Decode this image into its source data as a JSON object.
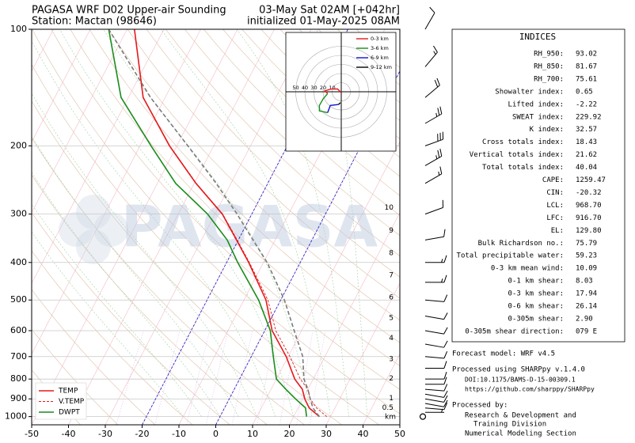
{
  "chart_data": {
    "type": "skewt",
    "title": "PAGASA WRF D02 Upper-air Sounding",
    "subtitle": "Station: Mactan (98646)",
    "title_right": "03-May Sat 02AM [+042hr]",
    "subtitle_right": "initialized 01-May-2025 08AM",
    "watermark": "PAGASA",
    "pressure": [
      1000,
      950,
      900,
      850,
      800,
      700,
      600,
      500,
      400,
      350,
      300,
      250,
      200,
      150,
      100
    ],
    "series": [
      {
        "name": "TEMP",
        "color": "#e31a1c",
        "line_style": "solid",
        "values": [
          27,
          23,
          20.5,
          18.5,
          15,
          9.5,
          2,
          -4,
          -14,
          -20.5,
          -28,
          -39.5,
          -52,
          -66,
          -78
        ]
      },
      {
        "name": "V.TEMP",
        "color": "#e31a1c",
        "line_style": "dashed",
        "values": [
          29,
          25,
          22,
          20,
          16.5,
          10.5,
          3,
          -3.5,
          -13.8,
          -20.3,
          -27.9,
          -39.4,
          -51.9,
          -66,
          -78
        ]
      },
      {
        "name": "DWPT",
        "color": "#1a8c1a",
        "line_style": "solid",
        "values": [
          23.5,
          22,
          18,
          14,
          10,
          6,
          1.5,
          -6,
          -17,
          -23,
          -32,
          -45,
          -57,
          -72,
          -85
        ]
      },
      {
        "color": "#7a7a7a",
        "line_style": "dashed",
        "values": [
          27,
          24,
          22,
          20,
          17.5,
          14,
          8,
          1,
          -9,
          -16,
          -24,
          -34,
          -47,
          -64,
          -85
        ]
      }
    ],
    "highlight_isotherms": [
      -20,
      0
    ],
    "highlight_color": "#1010d0",
    "xlim": [
      -50,
      50
    ],
    "xticks": [
      -50,
      -40,
      -30,
      -20,
      -10,
      0,
      10,
      20,
      30,
      40,
      50
    ],
    "ylim": [
      1050,
      100
    ],
    "yticks": [
      100,
      200,
      300,
      400,
      500,
      600,
      700,
      800,
      900,
      1000
    ],
    "log_y": true,
    "grid": true,
    "legend": "lower left",
    "heights": {
      "label": "km",
      "values": [
        0.5,
        1,
        2,
        3,
        4,
        5,
        6,
        7,
        8,
        9,
        10
      ],
      "pressure": [
        950,
        898,
        798,
        710,
        628,
        556,
        492,
        432,
        378,
        331,
        289
      ]
    },
    "wind": {
      "pressure": [
        1000,
        975,
        950,
        925,
        900,
        875,
        850,
        825,
        800,
        750,
        700,
        650,
        600,
        550,
        500,
        450,
        400,
        350,
        300,
        250,
        225,
        200,
        175,
        150,
        125,
        100
      ],
      "speed": [
        0,
        5,
        8,
        10,
        10,
        12,
        12,
        10,
        10,
        8,
        10,
        12,
        12,
        10,
        10,
        15,
        15,
        12,
        10,
        15,
        25,
        30,
        25,
        20,
        15,
        10
      ],
      "direction": [
        0,
        90,
        95,
        100,
        100,
        100,
        95,
        90,
        90,
        90,
        95,
        100,
        100,
        100,
        95,
        90,
        90,
        80,
        70,
        60,
        60,
        70,
        60,
        50,
        40,
        30
      ]
    },
    "hodograph": {
      "rings": [
        10,
        20,
        30,
        40,
        50
      ],
      "series": [
        {
          "name": "0-3 km",
          "color": "#e31a1c",
          "u": [
            0,
            -4,
            -11,
            -18,
            -15
          ],
          "v": [
            -1,
            3,
            3,
            1,
            -2
          ]
        },
        {
          "name": "3-6 km",
          "color": "#1a8c1a",
          "u": [
            -15,
            -20,
            -24,
            -24,
            -15
          ],
          "v": [
            -2,
            -8,
            -15,
            -21,
            -23
          ]
        },
        {
          "name": "6-9 km",
          "color": "#1010d0",
          "u": [
            -15,
            -12,
            -3
          ],
          "v": [
            -23,
            -15,
            -14
          ]
        },
        {
          "name": "9-12 km",
          "color": "#000000",
          "u": [
            -3,
            -1
          ],
          "v": [
            -14,
            -12
          ]
        }
      ]
    }
  },
  "indices": {
    "title": "INDICES",
    "rows": [
      [
        "RH_950:",
        "93.02"
      ],
      [
        "RH_850:",
        "81.67"
      ],
      [
        "RH_700:",
        "75.61"
      ],
      [
        "Showalter index:",
        "0.65"
      ],
      [
        "Lifted index:",
        "-2.22"
      ],
      [
        "SWEAT index:",
        "229.92"
      ],
      [
        "K index:",
        "32.57"
      ],
      [
        "Cross totals index:",
        "18.43"
      ],
      [
        "Vertical totals index:",
        "21.62"
      ],
      [
        "Total totals index:",
        "40.04"
      ],
      [
        "CAPE:",
        "1259.47"
      ],
      [
        "CIN:",
        "-20.32"
      ],
      [
        "LCL:",
        "968.70"
      ],
      [
        "LFC:",
        "916.70"
      ],
      [
        "EL:",
        "129.80"
      ],
      [
        "Bulk Richardson no.:",
        "75.79"
      ],
      [
        "Total precipitable water:",
        "59.23"
      ],
      [
        "0-3 km mean wind:",
        "10.09"
      ],
      [
        "0-1 km shear:",
        "8.03"
      ],
      [
        "0-3 km shear:",
        "17.94"
      ],
      [
        "0-6 km shear:",
        "26.14"
      ],
      [
        "0-305m shear:",
        "2.90"
      ],
      [
        "0-305m shear direction:",
        "079 E"
      ]
    ]
  },
  "footer": {
    "model": "Forecast model: WRF v4.5",
    "processed": "Processed using SHARPpy v.1.4.0",
    "doi": "DOI:10.1175/BAMS-D-15-00309.1",
    "url": "https://github.com/sharppy/SHARPpy",
    "processed_by": "Processed by:",
    "org_1": "Research & Development and",
    "org_2": "Training Division",
    "org_3": "Numerical Modeling Section"
  }
}
